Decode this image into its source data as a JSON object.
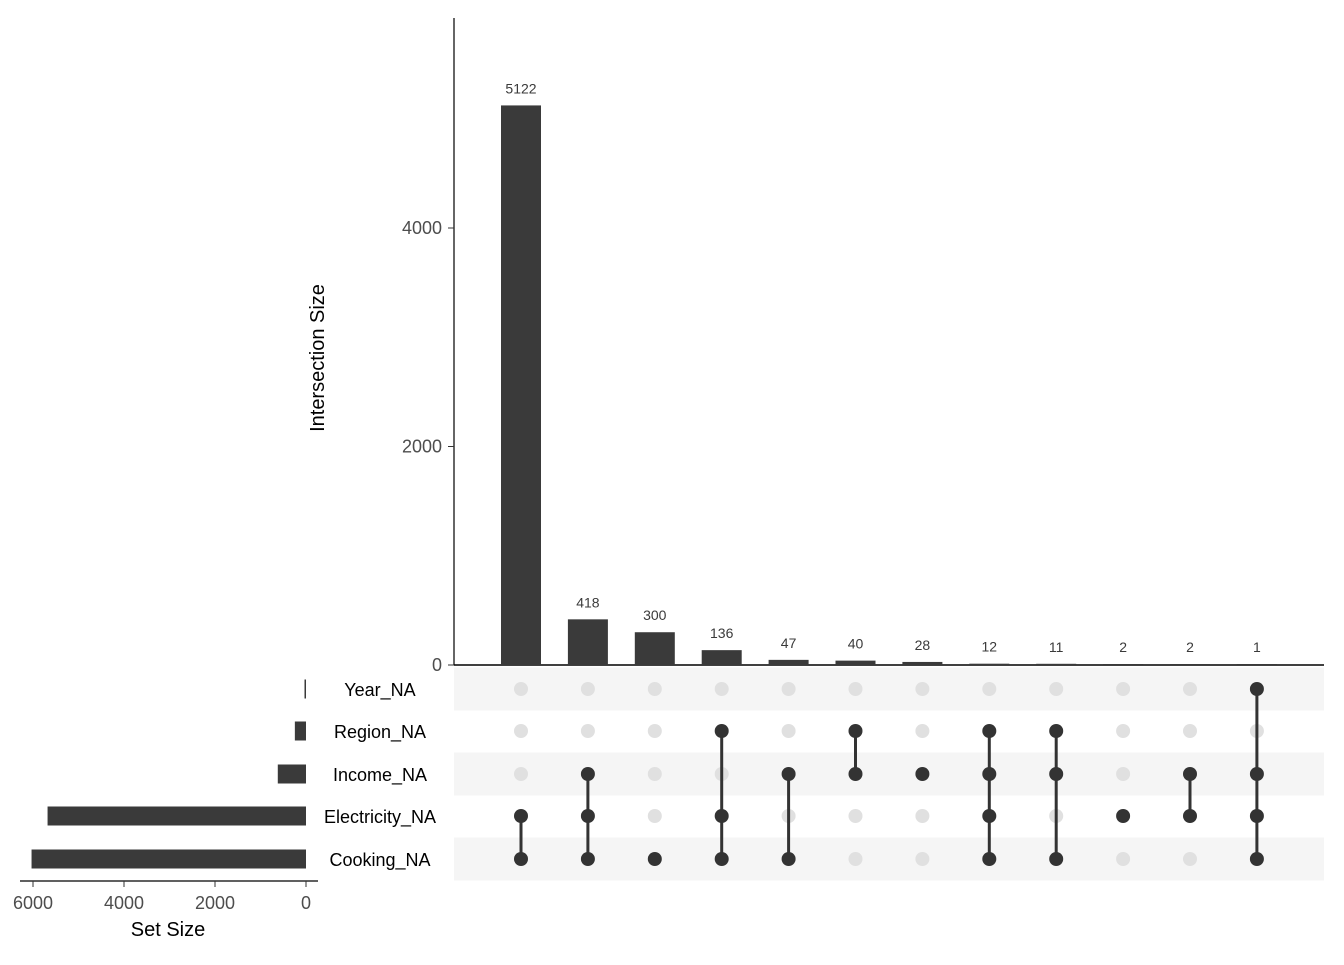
{
  "chart_data": {
    "type": "upset",
    "ylabel": "Intersection Size",
    "set_size_label": "Set Size",
    "ylim": [
      0,
      5700
    ],
    "y_ticks": [
      {
        "value": 0,
        "label": "0"
      },
      {
        "value": 2000,
        "label": "2000"
      },
      {
        "value": 4000,
        "label": "4000"
      }
    ],
    "set_size_ticks": [
      {
        "value": 6000,
        "label": "6000"
      },
      {
        "value": 4000,
        "label": "4000"
      },
      {
        "value": 2000,
        "label": "2000"
      },
      {
        "value": 0,
        "label": "0"
      }
    ],
    "sets": [
      {
        "name": "Year_NA",
        "size": 1
      },
      {
        "name": "Region_NA",
        "size": 245
      },
      {
        "name": "Income_NA",
        "size": 620
      },
      {
        "name": "Electricity_NA",
        "size": 5680
      },
      {
        "name": "Cooking_NA",
        "size": 6032
      }
    ],
    "intersections": [
      {
        "value": 5122,
        "label": "5122",
        "members": [
          "Electricity_NA",
          "Cooking_NA"
        ]
      },
      {
        "value": 418,
        "label": "418",
        "members": [
          "Income_NA",
          "Electricity_NA",
          "Cooking_NA"
        ]
      },
      {
        "value": 300,
        "label": "300",
        "members": [
          "Cooking_NA"
        ]
      },
      {
        "value": 136,
        "label": "136",
        "members": [
          "Region_NA",
          "Electricity_NA",
          "Cooking_NA"
        ]
      },
      {
        "value": 47,
        "label": "47",
        "members": [
          "Income_NA",
          "Cooking_NA"
        ]
      },
      {
        "value": 40,
        "label": "40",
        "members": [
          "Region_NA",
          "Income_NA"
        ]
      },
      {
        "value": 28,
        "label": "28",
        "members": [
          "Income_NA"
        ]
      },
      {
        "value": 12,
        "label": "12",
        "members": [
          "Region_NA",
          "Income_NA",
          "Electricity_NA",
          "Cooking_NA"
        ]
      },
      {
        "value": 11,
        "label": "11",
        "members": [
          "Region_NA",
          "Income_NA",
          "Cooking_NA"
        ]
      },
      {
        "value": 2,
        "label": "2",
        "members": [
          "Electricity_NA"
        ]
      },
      {
        "value": 2,
        "label": "2",
        "members": [
          "Income_NA",
          "Electricity_NA"
        ]
      },
      {
        "value": 1,
        "label": "1",
        "members": [
          "Year_NA",
          "Income_NA",
          "Electricity_NA",
          "Cooking_NA"
        ]
      }
    ],
    "colors": {
      "bar": "#3a3a3a",
      "dot_active": "#333333",
      "dot_inactive": "#e0e0e0",
      "stripe": "#f5f5f5",
      "axis": "#000000"
    }
  }
}
